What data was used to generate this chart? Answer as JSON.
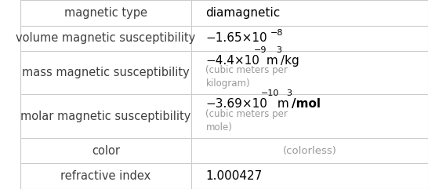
{
  "rows": [
    {
      "label": "magnetic type",
      "value": "diamagnetic",
      "type": "simple"
    },
    {
      "label": "volume magnetic susceptibility",
      "value": "−1.65×10",
      "superscript": "−8",
      "type": "scientific"
    },
    {
      "label": "mass magnetic susceptibility",
      "value": "−4.4×10",
      "superscript": "−9",
      "unit": "m",
      "unit_exp": "3",
      "unit_den": "/kg",
      "note": "(cubic meters per\nkilogram)",
      "type": "scientific_unit"
    },
    {
      "label": "molar magnetic susceptibility",
      "value": "−3.69×10",
      "superscript": "−10",
      "unit": "m",
      "unit_exp": "3",
      "unit_den": "/mol",
      "unit_den_bold": true,
      "note": "(cubic meters per\nmole)",
      "type": "scientific_unit"
    },
    {
      "label": "color",
      "value": "(colorless)",
      "type": "gray_centered"
    },
    {
      "label": "refractive index",
      "value": "1.000427",
      "type": "simple"
    }
  ],
  "row_heights": [
    1.0,
    1.0,
    1.7,
    1.7,
    1.0,
    1.0
  ],
  "col_split": 0.42,
  "bg_color": "#ffffff",
  "label_color": "#404040",
  "value_color": "#000000",
  "gray_color": "#999999",
  "line_color": "#cccccc",
  "label_fontsize": 10.5,
  "value_fontsize": 11,
  "super_fontsize": 8,
  "note_fontsize": 8.5,
  "gray_fontsize": 9.5
}
